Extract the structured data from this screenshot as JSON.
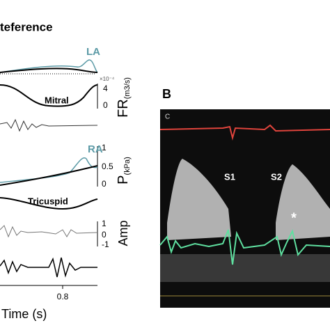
{
  "panel_a": {
    "title": "teference",
    "la_label": "LA",
    "fr_scale": "×10⁻⁴",
    "fr_ticks": [
      "4",
      "0"
    ],
    "fr_axis": "FR",
    "fr_unit": "(m3/s)",
    "mitral": "Mitral",
    "ra_label": "RA",
    "p_ticks": [
      "1",
      "0.5",
      "0"
    ],
    "p_axis": "P",
    "p_unit": "(kPa)",
    "tricuspid": "Tricuspid",
    "amp_ticks": [
      "1",
      "0",
      "-1"
    ],
    "amp_axis": "Amp",
    "x_tick": "0.8",
    "x_label": "Time (s)"
  },
  "panel_b": {
    "label": "B",
    "corner": "C",
    "s1": "S1",
    "s2": "S2",
    "marker": "*"
  }
}
